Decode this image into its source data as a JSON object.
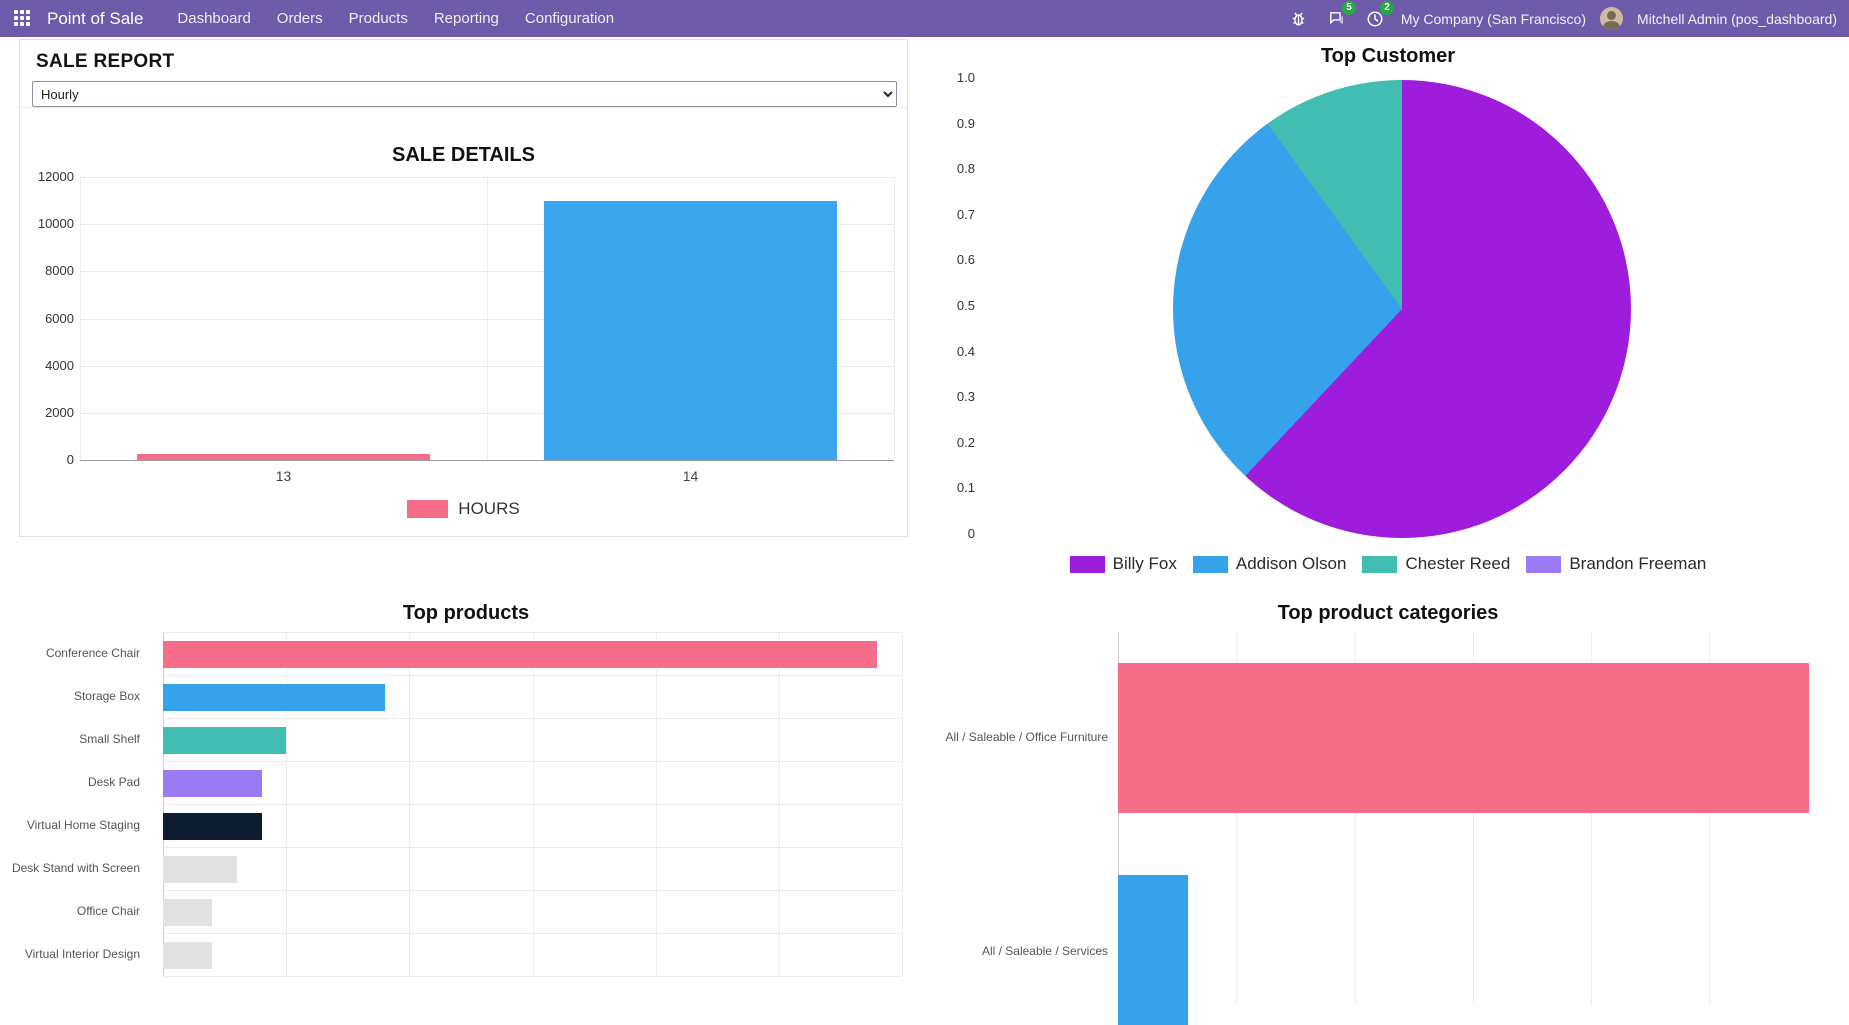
{
  "navbar": {
    "app_name": "Point of Sale",
    "menu_items": [
      "Dashboard",
      "Orders",
      "Products",
      "Reporting",
      "Configuration"
    ],
    "message_badge": "5",
    "activity_badge": "2",
    "company": "My Company (San Francisco)",
    "user": "Mitchell Admin (pos_dashboard)"
  },
  "sale_report": {
    "title": "SALE REPORT",
    "interval_selected": "Hourly"
  },
  "colors": {
    "navbar_bg": "#6d5aa8",
    "badge_green": "#28a745",
    "pink": "#f66d89",
    "blue": "#36a2eb",
    "teal": "#41bdb2",
    "purple": "#9e1cdb",
    "light_purple": "#9b7bf5",
    "dark_navy": "#0d1c2e",
    "gray_bar": "#e2e2e2"
  },
  "chart_data": [
    {
      "id": "sale_details",
      "type": "bar",
      "title": "SALE DETAILS",
      "categories": [
        "13",
        "14"
      ],
      "series": [
        {
          "name": "HOURS",
          "values": [
            250,
            11000
          ]
        }
      ],
      "bar_colors": [
        "#f66d89",
        "#3aa5ed"
      ],
      "legend": [
        {
          "label": "HOURS",
          "color": "#f66d89"
        }
      ],
      "legend_position": "bottom",
      "ylim": [
        0,
        12000
      ],
      "y_ticks": [
        0,
        2000,
        4000,
        6000,
        8000,
        10000,
        12000
      ],
      "grid": true
    },
    {
      "id": "top_customer",
      "type": "pie",
      "title": "Top Customer",
      "labels": [
        "Billy Fox",
        "Addison Olson",
        "Chester Reed",
        "Brandon Freeman"
      ],
      "values": [
        0.62,
        0.28,
        0.1,
        0.0
      ],
      "colors": [
        "#9e1cdb",
        "#36a2eb",
        "#41bdb2",
        "#9b7bf5"
      ],
      "axis_ticks": [
        "1.0",
        "0.9",
        "0.8",
        "0.7",
        "0.6",
        "0.5",
        "0.4",
        "0.3",
        "0.2",
        "0.1",
        "0"
      ],
      "legend_position": "bottom"
    },
    {
      "id": "top_products",
      "type": "bar",
      "orientation": "horizontal",
      "title": "Top products",
      "categories": [
        "Conference Chair",
        "Storage Box",
        "Small Shelf",
        "Desk Pad",
        "Virtual Home Staging",
        "Desk Stand with Screen",
        "Office Chair",
        "Virtual Interior Design"
      ],
      "values": [
        29,
        9,
        5,
        4,
        4,
        3,
        2,
        2
      ],
      "colors": [
        "#f66d89",
        "#36a2eb",
        "#41bdb2",
        "#9b7bf5",
        "#0d1c2e",
        "#e2e2e2",
        "#e2e2e2",
        "#e2e2e2"
      ],
      "xlim": [
        0,
        30
      ],
      "grid": true
    },
    {
      "id": "top_product_categories",
      "type": "bar",
      "orientation": "horizontal",
      "title": "Top product categories",
      "categories": [
        "All / Saleable / Office Furniture",
        "All / Saleable / Services"
      ],
      "values": [
        99,
        10
      ],
      "colors": [
        "#f66d89",
        "#36a2eb"
      ],
      "xlim": [
        0,
        100
      ],
      "grid": true
    }
  ]
}
